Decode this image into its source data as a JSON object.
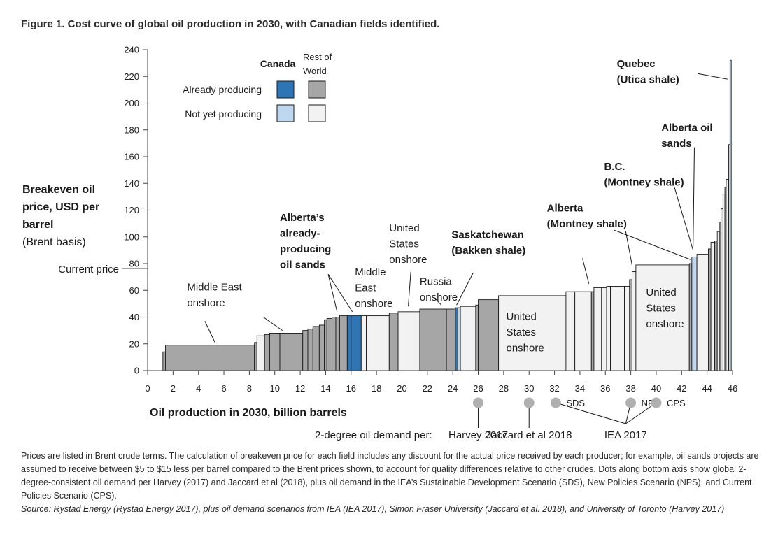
{
  "figure_title": "Figure 1. Cost curve of global oil production in 2030, with Canadian fields identified.",
  "colors": {
    "canada_producing": "#2e75b6",
    "row_producing": "#a6a6a6",
    "canada_not_producing": "#bdd7ee",
    "row_not_producing": "#f2f2f2",
    "outline": "#1a1a1a",
    "demand_dot": "#b0b0b0"
  },
  "legend": {
    "col_canada": "Canada",
    "col_row_line1": "Rest of",
    "col_row_line2": "World",
    "row_producing": "Already producing",
    "row_not_producing": "Not yet producing"
  },
  "current_price_label": "Current price",
  "demand_caption": "2-degree oil demand per:",
  "notes": {
    "text": "Prices are listed in Brent crude terms. The calculation of breakeven price for each field includes any discount for the actual price received by each producer; for example, oil sands projects are assumed to receive between $5 to $15 less per barrel compared to the Brent prices shown, to account for quality differences relative to other crudes. Dots along bottom axis show global 2-degree-consistent oil demand per Harvey (2017) and Jaccard et al (2018), plus oil demand in the IEA’s Sustainable Development Scenario (SDS), New Policies Scenario (NPS), and Current Policies Scenario (CPS).",
    "source": "Source: Rystad Energy (Rystad Energy 2017), plus oil demand scenarios from IEA (IEA 2017), Simon Fraser University (Jaccard et al. 2018), and University of Toronto (Harvey 2017)"
  },
  "chart_data": {
    "type": "bar",
    "subtype": "cost-curve",
    "title": "",
    "xlabel": "Oil production in 2030, billion barrels",
    "ylabel_lines": [
      "Breakeven oil",
      "price, USD per",
      "barrel"
    ],
    "ylabel_sub": "(Brent basis)",
    "xlim": [
      0,
      46
    ],
    "ylim": [
      0,
      240
    ],
    "xticks": [
      0,
      2,
      4,
      6,
      8,
      10,
      12,
      14,
      16,
      18,
      20,
      22,
      24,
      26,
      28,
      30,
      32,
      34,
      36,
      38,
      40,
      42,
      44,
      46
    ],
    "yticks": [
      0,
      20,
      40,
      60,
      80,
      100,
      120,
      140,
      160,
      180,
      200,
      220,
      240
    ],
    "grid": false,
    "current_price": 80,
    "segments": [
      {
        "x0": 1.2,
        "x1": 1.4,
        "y": 14,
        "cat": "row_producing"
      },
      {
        "x0": 1.4,
        "x1": 8.4,
        "y": 19,
        "cat": "row_producing"
      },
      {
        "x0": 8.4,
        "x1": 8.6,
        "y": 21,
        "cat": "row_producing"
      },
      {
        "x0": 8.6,
        "x1": 9.2,
        "y": 26,
        "cat": "row_not_producing"
      },
      {
        "x0": 9.2,
        "x1": 9.6,
        "y": 27,
        "cat": "row_producing"
      },
      {
        "x0": 9.6,
        "x1": 10.4,
        "y": 28,
        "cat": "row_producing"
      },
      {
        "x0": 10.4,
        "x1": 12.2,
        "y": 28,
        "cat": "row_producing"
      },
      {
        "x0": 12.2,
        "x1": 12.6,
        "y": 30,
        "cat": "row_producing"
      },
      {
        "x0": 12.6,
        "x1": 13.0,
        "y": 31,
        "cat": "row_producing"
      },
      {
        "x0": 13.0,
        "x1": 13.5,
        "y": 33,
        "cat": "row_producing"
      },
      {
        "x0": 13.5,
        "x1": 13.9,
        "y": 34,
        "cat": "row_producing"
      },
      {
        "x0": 13.9,
        "x1": 14.1,
        "y": 38,
        "cat": "row_producing"
      },
      {
        "x0": 14.1,
        "x1": 14.5,
        "y": 39,
        "cat": "row_producing"
      },
      {
        "x0": 14.5,
        "x1": 14.8,
        "y": 40,
        "cat": "row_producing"
      },
      {
        "x0": 14.8,
        "x1": 15.1,
        "y": 40,
        "cat": "row_producing"
      },
      {
        "x0": 15.1,
        "x1": 15.7,
        "y": 41,
        "cat": "row_producing"
      },
      {
        "x0": 15.7,
        "x1": 16.0,
        "y": 41,
        "cat": "canada_producing"
      },
      {
        "x0": 16.0,
        "x1": 16.8,
        "y": 41,
        "cat": "canada_producing"
      },
      {
        "x0": 16.8,
        "x1": 17.2,
        "y": 41,
        "cat": "row_not_producing"
      },
      {
        "x0": 17.2,
        "x1": 19.0,
        "y": 41,
        "cat": "row_not_producing"
      },
      {
        "x0": 19.0,
        "x1": 19.7,
        "y": 43,
        "cat": "row_producing"
      },
      {
        "x0": 19.7,
        "x1": 21.4,
        "y": 44,
        "cat": "row_not_producing"
      },
      {
        "x0": 21.4,
        "x1": 23.5,
        "y": 46,
        "cat": "row_producing"
      },
      {
        "x0": 23.5,
        "x1": 24.2,
        "y": 46,
        "cat": "row_producing"
      },
      {
        "x0": 24.2,
        "x1": 24.4,
        "y": 47,
        "cat": "canada_producing"
      },
      {
        "x0": 24.4,
        "x1": 24.6,
        "y": 47,
        "cat": "canada_not_producing"
      },
      {
        "x0": 24.6,
        "x1": 25.8,
        "y": 48,
        "cat": "row_not_producing"
      },
      {
        "x0": 25.8,
        "x1": 26.0,
        "y": 49,
        "cat": "row_producing"
      },
      {
        "x0": 26.0,
        "x1": 27.6,
        "y": 53,
        "cat": "row_producing"
      },
      {
        "x0": 27.6,
        "x1": 32.9,
        "y": 56,
        "cat": "row_not_producing"
      },
      {
        "x0": 32.9,
        "x1": 33.6,
        "y": 59,
        "cat": "row_not_producing"
      },
      {
        "x0": 33.6,
        "x1": 34.9,
        "y": 59,
        "cat": "row_not_producing"
      },
      {
        "x0": 34.9,
        "x1": 35.1,
        "y": 59,
        "cat": "row_producing"
      },
      {
        "x0": 35.1,
        "x1": 35.7,
        "y": 62,
        "cat": "row_not_producing"
      },
      {
        "x0": 35.7,
        "x1": 36.1,
        "y": 62,
        "cat": "row_not_producing"
      },
      {
        "x0": 36.1,
        "x1": 36.4,
        "y": 63,
        "cat": "row_not_producing"
      },
      {
        "x0": 36.4,
        "x1": 37.5,
        "y": 63,
        "cat": "row_not_producing"
      },
      {
        "x0": 37.5,
        "x1": 37.9,
        "y": 63,
        "cat": "row_not_producing"
      },
      {
        "x0": 37.9,
        "x1": 38.1,
        "y": 68,
        "cat": "row_producing"
      },
      {
        "x0": 38.1,
        "x1": 38.4,
        "y": 74,
        "cat": "row_not_producing"
      },
      {
        "x0": 38.4,
        "x1": 42.6,
        "y": 79,
        "cat": "row_not_producing"
      },
      {
        "x0": 42.6,
        "x1": 42.8,
        "y": 80,
        "cat": "row_producing"
      },
      {
        "x0": 42.8,
        "x1": 43.2,
        "y": 85,
        "cat": "canada_not_producing"
      },
      {
        "x0": 43.2,
        "x1": 44.1,
        "y": 87,
        "cat": "row_not_producing"
      },
      {
        "x0": 44.1,
        "x1": 44.3,
        "y": 91,
        "cat": "row_producing"
      },
      {
        "x0": 44.3,
        "x1": 44.6,
        "y": 96,
        "cat": "row_not_producing"
      },
      {
        "x0": 44.6,
        "x1": 44.8,
        "y": 97,
        "cat": "row_producing"
      },
      {
        "x0": 44.8,
        "x1": 45.0,
        "y": 104,
        "cat": "row_not_producing"
      },
      {
        "x0": 45.0,
        "x1": 45.1,
        "y": 111,
        "cat": "row_producing"
      },
      {
        "x0": 45.1,
        "x1": 45.25,
        "y": 121,
        "cat": "row_not_producing"
      },
      {
        "x0": 45.25,
        "x1": 45.4,
        "y": 132,
        "cat": "row_not_producing"
      },
      {
        "x0": 45.4,
        "x1": 45.5,
        "y": 137,
        "cat": "row_producing"
      },
      {
        "x0": 45.5,
        "x1": 45.7,
        "y": 143,
        "cat": "row_not_producing"
      },
      {
        "x0": 45.7,
        "x1": 45.8,
        "y": 169,
        "cat": "row_not_producing"
      },
      {
        "x0": 45.8,
        "x1": 45.9,
        "y": 232,
        "cat": "canada_not_producing"
      }
    ],
    "labels": [
      {
        "lines": [
          "Middle East",
          "onshore"
        ],
        "bold": false,
        "x": 3.1,
        "y": 60,
        "leader": [
          [
            4.5,
            37
          ],
          [
            5.3,
            21
          ]
        ]
      },
      {
        "lines": [
          "Alberta’s",
          "already-",
          "producing",
          "oil sands"
        ],
        "bold": true,
        "x": 10.4,
        "y": 112,
        "leader": [
          [
            14.2,
            72
          ],
          [
            14.9,
            44
          ]
        ],
        "leader2": [
          [
            14.2,
            72
          ],
          [
            16.1,
            44
          ]
        ]
      },
      {
        "lines": [
          "Middle",
          "East",
          "onshore"
        ],
        "bold": false,
        "x": 16.3,
        "y": 71,
        "leader": [
          [
            9.1,
            40
          ],
          [
            10.6,
            30
          ]
        ]
      },
      {
        "lines": [
          "United",
          "States",
          "onshore"
        ],
        "bold": false,
        "x": 19.0,
        "y": 104,
        "leader": [
          [
            20.7,
            74
          ],
          [
            20.5,
            48
          ]
        ]
      },
      {
        "lines": [
          "Russia",
          "onshore"
        ],
        "bold": false,
        "x": 21.4,
        "y": 64,
        "leader": [
          [
            22.6,
            54
          ],
          [
            23.1,
            49
          ]
        ]
      },
      {
        "lines": [
          "Saskatchewan",
          "(Bakken shale)"
        ],
        "bold": true,
        "x": 23.9,
        "y": 99,
        "leader": [
          [
            25.6,
            73
          ],
          [
            24.3,
            49
          ]
        ]
      },
      {
        "lines": [
          "United",
          "States",
          "onshore"
        ],
        "bold": false,
        "x": 28.2,
        "y": 38,
        "leader": null
      },
      {
        "lines": [
          "Alberta",
          "(Montney shale)"
        ],
        "bold": true,
        "x": 31.4,
        "y": 119,
        "leader": [
          [
            34.2,
            84
          ],
          [
            34.7,
            65
          ]
        ],
        "leader2": [
          [
            36.7,
            105
          ],
          [
            42.7,
            83
          ]
        ]
      },
      {
        "lines": [
          "B.C.",
          "(Montney shale)"
        ],
        "bold": true,
        "x": 35.9,
        "y": 150,
        "leader": [
          [
            37.6,
            104
          ],
          [
            38.1,
            79
          ]
        ],
        "leader2": [
          [
            41.4,
            138
          ],
          [
            42.9,
            90
          ]
        ]
      },
      {
        "lines": [
          "Alberta oil",
          "sands"
        ],
        "bold": true,
        "x": 40.4,
        "y": 179,
        "leader": [
          [
            43.0,
            167
          ],
          [
            42.9,
            93
          ]
        ]
      },
      {
        "lines": [
          "United",
          "States",
          "onshore"
        ],
        "bold": false,
        "x": 39.2,
        "y": 56,
        "leader": null
      },
      {
        "lines": [
          "Quebec",
          "(Utica shale)"
        ],
        "bold": true,
        "x": 36.9,
        "y": 227,
        "leader": [
          [
            43.3,
            222
          ],
          [
            45.6,
            218
          ]
        ]
      }
    ],
    "demand_points": [
      {
        "x": 26.0,
        "name": "Harvey 2017",
        "short": "",
        "group": "two-degree"
      },
      {
        "x": 30.0,
        "name": "Jaccard et al 2018",
        "short": "",
        "group": "two-degree"
      },
      {
        "x": 32.1,
        "name": "IEA 2017",
        "short": "SDS",
        "group": "iea"
      },
      {
        "x": 38.0,
        "name": "IEA 2017",
        "short": "NPS",
        "group": "iea"
      },
      {
        "x": 40.0,
        "name": "IEA 2017",
        "short": "CPS",
        "group": "iea"
      }
    ],
    "demand_group_label": "IEA 2017",
    "harvey_label": "Harvey 2017",
    "jaccard_label": "Jaccard et al 2018"
  }
}
